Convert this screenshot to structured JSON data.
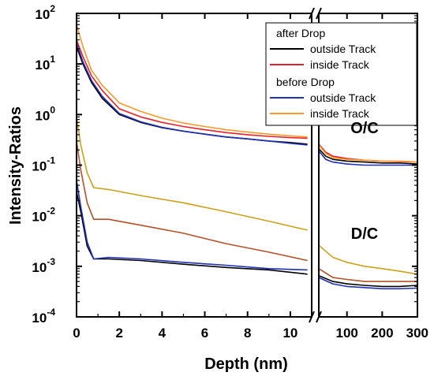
{
  "chart_data": {
    "type": "line",
    "xlabel": "Depth (nm)",
    "ylabel": "Intensity-Ratios",
    "y_scale": "log",
    "ylim": [
      0.0001,
      100
    ],
    "y_ticks": [
      {
        "value": 0.0001,
        "base": "10",
        "exp": "-4"
      },
      {
        "value": 0.001,
        "base": "10",
        "exp": "-3"
      },
      {
        "value": 0.01,
        "base": "10",
        "exp": "-2"
      },
      {
        "value": 0.1,
        "base": "10",
        "exp": "-1"
      },
      {
        "value": 1,
        "base": "10",
        "exp": "0"
      },
      {
        "value": 10,
        "base": "10",
        "exp": "1"
      },
      {
        "value": 100,
        "base": "10",
        "exp": "2"
      }
    ],
    "x_break": true,
    "x_left": {
      "xlim": [
        0,
        11
      ],
      "ticks": [
        {
          "value": 0,
          "label": "0"
        },
        {
          "value": 2,
          "label": "2"
        },
        {
          "value": 4,
          "label": "4"
        },
        {
          "value": 6,
          "label": "6"
        },
        {
          "value": 8,
          "label": "8"
        },
        {
          "value": 10,
          "label": "10"
        }
      ]
    },
    "x_right": {
      "xlim": [
        20,
        300
      ],
      "ticks": [
        {
          "value": 100,
          "label": "100"
        },
        {
          "value": 200,
          "label": "200"
        },
        {
          "value": 300,
          "label": "300"
        }
      ]
    },
    "legend": {
      "placement": "top-right",
      "groups": [
        {
          "title": "after Drop",
          "entries": [
            {
              "label": "outside Track",
              "color": "#000000"
            },
            {
              "label": "inside Track",
              "color": "#e8202a"
            }
          ]
        },
        {
          "title": "before Drop",
          "entries": [
            {
              "label": "outside Track",
              "color": "#1f2fb5"
            },
            {
              "label": "inside Track",
              "color": "#f79a2a"
            }
          ]
        }
      ]
    },
    "annotations": [
      {
        "text": "O/C",
        "x": 150,
        "y": 0.55
      },
      {
        "text": "D/C",
        "x": 150,
        "y": 0.0045
      }
    ],
    "series": [
      {
        "group": "O/C",
        "condition": "after Drop",
        "location": "outside Track",
        "color": "#000000",
        "left": [
          [
            0,
            22
          ],
          [
            0.3,
            10
          ],
          [
            0.7,
            4.3
          ],
          [
            1.2,
            2.1
          ],
          [
            2,
            1.0
          ],
          [
            3,
            0.7
          ],
          [
            4,
            0.55
          ],
          [
            5,
            0.47
          ],
          [
            6,
            0.41
          ],
          [
            7,
            0.36
          ],
          [
            8,
            0.33
          ],
          [
            9,
            0.3
          ],
          [
            10,
            0.28
          ],
          [
            10.8,
            0.26
          ]
        ],
        "right": [
          [
            20,
            0.21
          ],
          [
            40,
            0.15
          ],
          [
            60,
            0.13
          ],
          [
            100,
            0.12
          ],
          [
            150,
            0.115
          ],
          [
            200,
            0.11
          ],
          [
            250,
            0.11
          ],
          [
            300,
            0.105
          ]
        ]
      },
      {
        "group": "O/C",
        "condition": "after Drop",
        "location": "inside Track",
        "color": "#e8202a",
        "left": [
          [
            0,
            30
          ],
          [
            0.3,
            14
          ],
          [
            0.7,
            5.8
          ],
          [
            1.2,
            3.0
          ],
          [
            2,
            1.3
          ],
          [
            3,
            0.9
          ],
          [
            4,
            0.7
          ],
          [
            5,
            0.58
          ],
          [
            6,
            0.5
          ],
          [
            7,
            0.44
          ],
          [
            8,
            0.4
          ],
          [
            9,
            0.37
          ],
          [
            10,
            0.35
          ],
          [
            10.8,
            0.34
          ]
        ],
        "right": [
          [
            20,
            0.26
          ],
          [
            40,
            0.18
          ],
          [
            60,
            0.15
          ],
          [
            100,
            0.135
          ],
          [
            150,
            0.125
          ],
          [
            200,
            0.12
          ],
          [
            250,
            0.118
          ],
          [
            300,
            0.115
          ]
        ]
      },
      {
        "group": "O/C",
        "condition": "before Drop",
        "location": "outside Track",
        "color": "#1f2fb5",
        "left": [
          [
            0,
            26
          ],
          [
            0.3,
            11
          ],
          [
            0.7,
            4.7
          ],
          [
            1.2,
            2.3
          ],
          [
            2,
            1.05
          ],
          [
            3,
            0.72
          ],
          [
            4,
            0.56
          ],
          [
            5,
            0.47
          ],
          [
            6,
            0.41
          ],
          [
            7,
            0.36
          ],
          [
            8,
            0.33
          ],
          [
            9,
            0.3
          ],
          [
            10,
            0.27
          ],
          [
            10.8,
            0.25
          ]
        ],
        "right": [
          [
            20,
            0.19
          ],
          [
            40,
            0.13
          ],
          [
            60,
            0.115
          ],
          [
            100,
            0.105
          ],
          [
            150,
            0.1
          ],
          [
            200,
            0.1
          ],
          [
            250,
            0.1
          ],
          [
            300,
            0.1
          ]
        ]
      },
      {
        "group": "O/C",
        "condition": "before Drop",
        "location": "inside Track",
        "color": "#f79a2a",
        "left": [
          [
            0,
            60
          ],
          [
            0.3,
            22
          ],
          [
            0.7,
            7.5
          ],
          [
            1.2,
            3.8
          ],
          [
            2,
            1.7
          ],
          [
            3,
            1.15
          ],
          [
            4,
            0.85
          ],
          [
            5,
            0.68
          ],
          [
            6,
            0.58
          ],
          [
            7,
            0.5
          ],
          [
            8,
            0.45
          ],
          [
            9,
            0.41
          ],
          [
            10,
            0.38
          ],
          [
            10.8,
            0.36
          ]
        ],
        "right": [
          [
            20,
            0.25
          ],
          [
            40,
            0.17
          ],
          [
            60,
            0.14
          ],
          [
            100,
            0.13
          ],
          [
            150,
            0.125
          ],
          [
            200,
            0.12
          ],
          [
            250,
            0.12
          ],
          [
            300,
            0.115
          ]
        ]
      },
      {
        "group": "D/C",
        "condition": "after Drop",
        "location": "outside Track",
        "color": "#000000",
        "left": [
          [
            0,
            0.03
          ],
          [
            0.2,
            0.012
          ],
          [
            0.5,
            0.0025
          ],
          [
            0.8,
            0.0014
          ],
          [
            1.5,
            0.0014
          ],
          [
            3,
            0.0013
          ],
          [
            5,
            0.0011
          ],
          [
            7,
            0.00095
          ],
          [
            9,
            0.00085
          ],
          [
            10.8,
            0.0007
          ]
        ],
        "right": [
          [
            20,
            0.00065
          ],
          [
            60,
            0.0005
          ],
          [
            100,
            0.00045
          ],
          [
            150,
            0.00042
          ],
          [
            200,
            0.0004
          ],
          [
            250,
            0.0004
          ],
          [
            300,
            0.00042
          ]
        ]
      },
      {
        "group": "D/C",
        "condition": "after Drop",
        "location": "inside Track",
        "color": "#b5502a",
        "left": [
          [
            0,
            0.3
          ],
          [
            0.2,
            0.08
          ],
          [
            0.5,
            0.018
          ],
          [
            0.8,
            0.0085
          ],
          [
            1.5,
            0.0085
          ],
          [
            3,
            0.0065
          ],
          [
            5,
            0.0045
          ],
          [
            7,
            0.0028
          ],
          [
            9,
            0.0019
          ],
          [
            10.8,
            0.0013
          ]
        ],
        "right": [
          [
            20,
            0.0009
          ],
          [
            60,
            0.0006
          ],
          [
            100,
            0.00055
          ],
          [
            150,
            0.0005
          ],
          [
            200,
            0.0005
          ],
          [
            250,
            0.0005
          ],
          [
            300,
            0.0005
          ]
        ]
      },
      {
        "group": "D/C",
        "condition": "before Drop",
        "location": "outside Track",
        "color": "#1f2fb5",
        "left": [
          [
            0,
            0.05
          ],
          [
            0.2,
            0.015
          ],
          [
            0.5,
            0.003
          ],
          [
            0.8,
            0.0014
          ],
          [
            1.5,
            0.0015
          ],
          [
            3,
            0.0014
          ],
          [
            5,
            0.0012
          ],
          [
            7,
            0.00105
          ],
          [
            9,
            0.0009
          ],
          [
            10.8,
            0.00085
          ]
        ],
        "right": [
          [
            20,
            0.0006
          ],
          [
            60,
            0.00045
          ],
          [
            100,
            0.0004
          ],
          [
            150,
            0.00038
          ],
          [
            200,
            0.00036
          ],
          [
            250,
            0.00036
          ],
          [
            300,
            0.00037
          ]
        ]
      },
      {
        "group": "D/C",
        "condition": "before Drop",
        "location": "inside Track",
        "color": "#c9a21a",
        "left": [
          [
            0,
            0.9
          ],
          [
            0.2,
            0.25
          ],
          [
            0.5,
            0.07
          ],
          [
            0.8,
            0.036
          ],
          [
            1.5,
            0.033
          ],
          [
            3,
            0.025
          ],
          [
            5,
            0.018
          ],
          [
            7,
            0.012
          ],
          [
            9,
            0.0078
          ],
          [
            10.8,
            0.0052
          ]
        ],
        "right": [
          [
            20,
            0.0026
          ],
          [
            60,
            0.0015
          ],
          [
            100,
            0.0012
          ],
          [
            150,
            0.001
          ],
          [
            200,
            0.0009
          ],
          [
            250,
            0.0008
          ],
          [
            300,
            0.0007
          ]
        ]
      }
    ]
  }
}
